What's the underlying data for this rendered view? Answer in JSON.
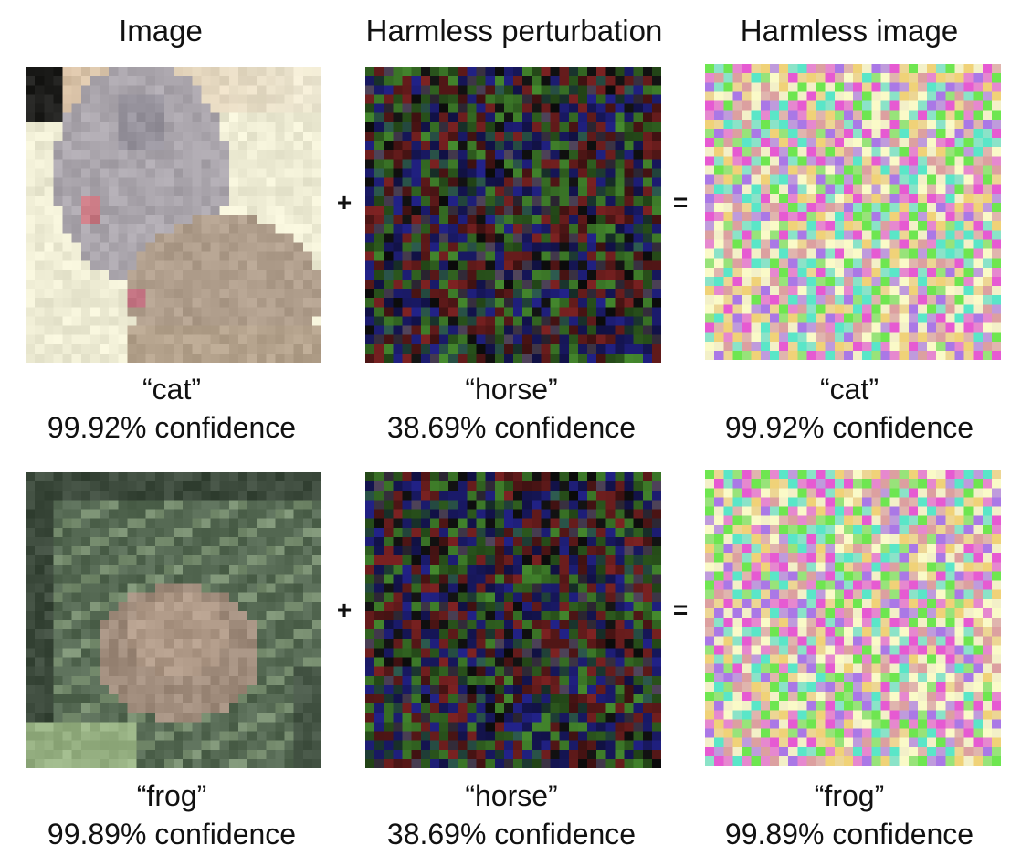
{
  "headers": {
    "image": "Image",
    "perturbation": "Harmless perturbation",
    "harmless_image": "Harmless image"
  },
  "operators": {
    "plus": "+",
    "equals": "="
  },
  "rows": [
    {
      "image": {
        "label": "“cat”",
        "confidence": "99.92% confidence"
      },
      "perturbation": {
        "label": "“horse”",
        "confidence": "38.69% confidence"
      },
      "result": {
        "label": "“cat”",
        "confidence": "99.92% confidence"
      }
    },
    {
      "image": {
        "label": "“frog”",
        "confidence": "99.89% confidence"
      },
      "perturbation": {
        "label": "“horse”",
        "confidence": "38.69% confidence"
      },
      "result": {
        "label": "“frog”",
        "confidence": "99.89% confidence"
      }
    }
  ]
}
